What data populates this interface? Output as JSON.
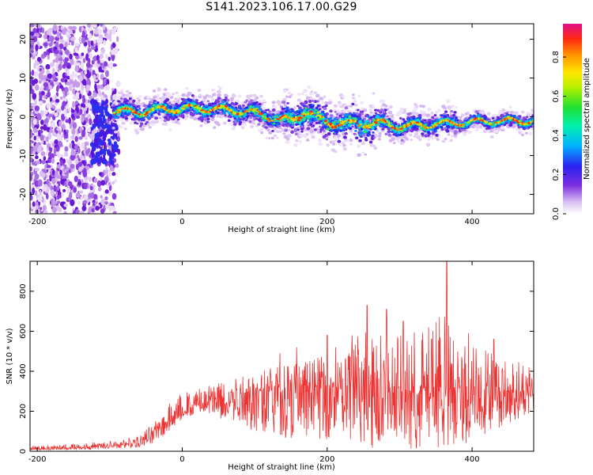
{
  "title": "S141.2023.106.17.00.G29",
  "chart_data": [
    {
      "type": "heatmap",
      "xlabel": "Height of straight line (km)",
      "ylabel": "Frequency (Hz)",
      "xlim": [
        -210,
        485
      ],
      "ylim": [
        -25,
        24
      ],
      "xticks": [
        -200,
        0,
        200,
        400
      ],
      "yticks": [
        -20,
        -10,
        0,
        10,
        20
      ],
      "ridge_x": [
        -95,
        -60,
        -20,
        20,
        60,
        100,
        130,
        150,
        170,
        200,
        240,
        270,
        300,
        340,
        380,
        420,
        485
      ],
      "ridge_freq": [
        1.5,
        1.2,
        2.0,
        2.2,
        1.8,
        1.0,
        -0.5,
        -1.0,
        1.5,
        -1.5,
        -1.8,
        -1.5,
        -2.5,
        -2.0,
        -1.5,
        -1.2,
        -1.0
      ],
      "colorbar": {
        "label": "Normalized spectral amplitude",
        "range": [
          0.0,
          0.97
        ],
        "ticks": [
          0.0,
          0.2,
          0.4,
          0.6,
          0.8
        ],
        "tick_labels": [
          "0.0",
          "0.2",
          "0.4",
          "0.6",
          "0.8"
        ]
      }
    },
    {
      "type": "line",
      "xlabel": "Height of straight line (km)",
      "ylabel": "SNR (10 * v/v)",
      "xlim": [
        -210,
        485
      ],
      "ylim": [
        0,
        950
      ],
      "xticks": [
        -200,
        0,
        200,
        400
      ],
      "yticks": [
        0,
        200,
        400,
        600,
        800
      ],
      "series": [
        {
          "color": "#ee3333",
          "envelope_x": [
            -210,
            -100,
            -60,
            -40,
            -20,
            0,
            20,
            40,
            60,
            100,
            150,
            200,
            220,
            240,
            260,
            300,
            360,
            400,
            440,
            485
          ],
          "envelope_low": [
            5,
            10,
            20,
            40,
            90,
            150,
            190,
            180,
            150,
            100,
            60,
            60,
            80,
            30,
            10,
            10,
            10,
            30,
            120,
            200
          ],
          "envelope_mid": [
            10,
            25,
            45,
            90,
            160,
            200,
            230,
            260,
            280,
            300,
            310,
            330,
            300,
            360,
            330,
            300,
            300,
            310,
            300,
            300
          ],
          "envelope_high": [
            25,
            50,
            80,
            150,
            250,
            300,
            330,
            350,
            380,
            400,
            450,
            480,
            450,
            650,
            620,
            580,
            700,
            550,
            480,
            450
          ],
          "peaks": [
            {
              "x": 135,
              "y": 490
            },
            {
              "x": 158,
              "y": 520
            },
            {
              "x": 200,
              "y": 580
            },
            {
              "x": 212,
              "y": 520
            },
            {
              "x": 230,
              "y": 490
            },
            {
              "x": 255,
              "y": 730
            },
            {
              "x": 262,
              "y": 560
            },
            {
              "x": 282,
              "y": 710
            },
            {
              "x": 305,
              "y": 650
            },
            {
              "x": 340,
              "y": 620
            },
            {
              "x": 355,
              "y": 670
            },
            {
              "x": 365,
              "y": 950
            },
            {
              "x": 380,
              "y": 500
            },
            {
              "x": 395,
              "y": 590
            },
            {
              "x": 430,
              "y": 560
            }
          ]
        }
      ]
    }
  ]
}
